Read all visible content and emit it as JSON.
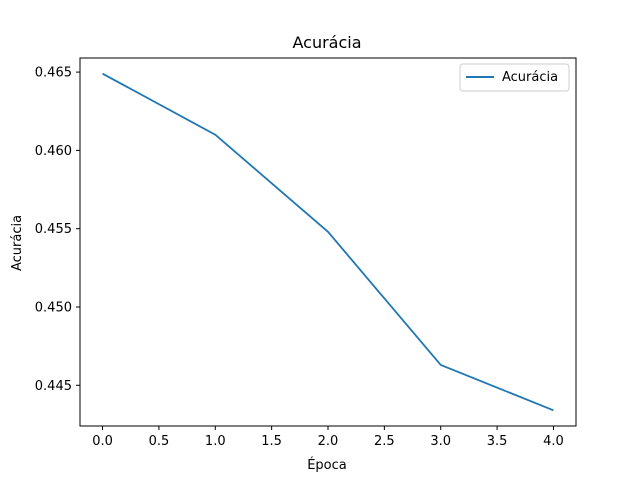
{
  "chart_data": {
    "type": "line",
    "title": "Acurácia",
    "xlabel": "Época",
    "ylabel": "Acurácia",
    "x": [
      0,
      1,
      2,
      3,
      4
    ],
    "series": [
      {
        "name": "Acurácia",
        "color": "#1f77b4",
        "values": [
          0.4649,
          0.461,
          0.4548,
          0.4463,
          0.4434
        ]
      }
    ],
    "xlim": [
      -0.2,
      4.2
    ],
    "ylim": [
      0.4424,
      0.4659
    ],
    "xticks": [
      0.0,
      0.5,
      1.0,
      1.5,
      2.0,
      2.5,
      3.0,
      3.5,
      4.0
    ],
    "xtick_labels": [
      "0.0",
      "0.5",
      "1.0",
      "1.5",
      "2.0",
      "2.5",
      "3.0",
      "3.5",
      "4.0"
    ],
    "yticks": [
      0.445,
      0.45,
      0.455,
      0.46,
      0.465
    ],
    "ytick_labels": [
      "0.445",
      "0.450",
      "0.455",
      "0.460",
      "0.465"
    ],
    "grid": false,
    "legend_position": "top-right"
  }
}
